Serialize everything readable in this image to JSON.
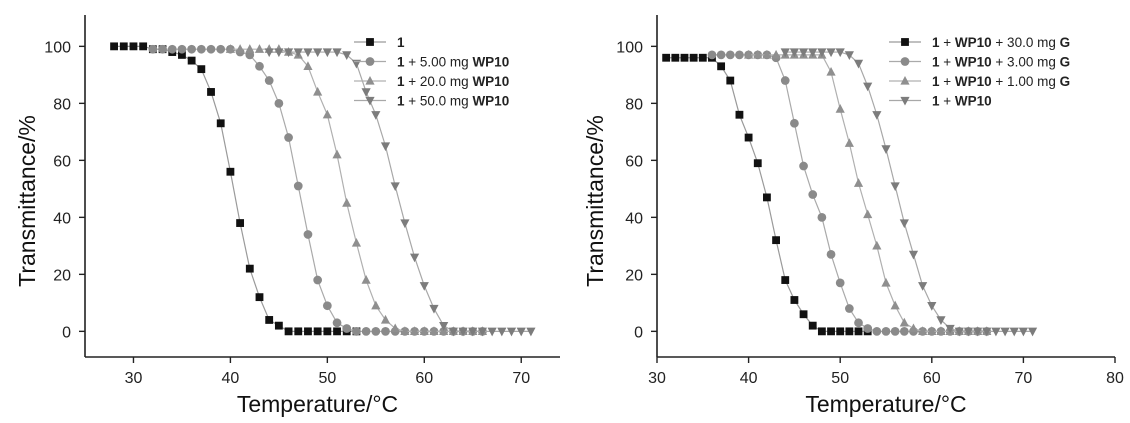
{
  "chart_data": [
    {
      "type": "scatter",
      "xlabel": "Temperature/°C",
      "ylabel": "Transmittance/%",
      "xlim": [
        25,
        74
      ],
      "ylim": [
        -9,
        111
      ],
      "xticks": [
        30,
        40,
        50,
        60,
        70
      ],
      "yticks": [
        0,
        20,
        40,
        60,
        80,
        100
      ],
      "legend_position": "top-right",
      "series": [
        {
          "name": "1",
          "legend": [
            {
              "t": "1",
              "b": true
            }
          ],
          "marker": "square",
          "color": "#111111",
          "line_color": "#9a9a9a",
          "x": [
            28,
            29,
            30,
            31,
            32,
            33,
            34,
            35,
            36,
            37,
            38,
            39,
            40,
            41,
            42,
            43,
            44,
            45,
            46,
            47,
            48,
            49,
            50,
            51,
            52,
            53
          ],
          "y": [
            100,
            100,
            100,
            100,
            99,
            99,
            98,
            97,
            95,
            92,
            84,
            73,
            56,
            38,
            22,
            12,
            4,
            2,
            0,
            0,
            0,
            0,
            0,
            0,
            0,
            0
          ]
        },
        {
          "name": "1 + 5.00 mg WP10",
          "legend": [
            {
              "t": "1",
              "b": true
            },
            {
              "t": " + 5.00 mg ",
              "b": false
            },
            {
              "t": "WP10",
              "b": true
            }
          ],
          "marker": "circle",
          "color": "#8a8a8a",
          "line_color": "#aaaaaa",
          "x": [
            32,
            33,
            34,
            35,
            36,
            37,
            38,
            39,
            40,
            41,
            42,
            43,
            44,
            45,
            46,
            47,
            48,
            49,
            50,
            51,
            52,
            53,
            54,
            55,
            56,
            57,
            58,
            59,
            60,
            61,
            62,
            63,
            64,
            65,
            66
          ],
          "y": [
            99,
            99,
            99,
            99,
            99,
            99,
            99,
            99,
            99,
            98,
            97,
            93,
            88,
            80,
            68,
            51,
            34,
            18,
            9,
            3,
            1,
            0,
            0,
            0,
            0,
            0,
            0,
            0,
            0,
            0,
            0,
            0,
            0,
            0,
            0
          ]
        },
        {
          "name": "1 + 20.0 mg WP10",
          "legend": [
            {
              "t": "1",
              "b": true
            },
            {
              "t": " + 20.0 mg ",
              "b": false
            },
            {
              "t": "WP10",
              "b": true
            }
          ],
          "marker": "triangle-up",
          "color": "#8f8f8f",
          "line_color": "#b0b0b0",
          "x": [
            40,
            41,
            42,
            43,
            44,
            45,
            46,
            47,
            48,
            49,
            50,
            51,
            52,
            53,
            54,
            55,
            56,
            57,
            58,
            59,
            60,
            61,
            62,
            63,
            64,
            65,
            66
          ],
          "y": [
            99,
            99,
            99,
            99,
            99,
            99,
            98,
            97,
            93,
            84,
            76,
            62,
            45,
            31,
            18,
            9,
            4,
            1,
            0,
            0,
            0,
            0,
            0,
            0,
            0,
            0,
            0
          ]
        },
        {
          "name": "1 + 50.0 mg WP10",
          "legend": [
            {
              "t": "1",
              "b": true
            },
            {
              "t": " + 50.0 mg ",
              "b": false
            },
            {
              "t": "WP10",
              "b": true
            }
          ],
          "marker": "triangle-down",
          "color": "#7c7c7c",
          "line_color": "#a8a8a8",
          "x": [
            44,
            45,
            46,
            47,
            48,
            49,
            50,
            51,
            52,
            53,
            54,
            55,
            56,
            57,
            58,
            59,
            60,
            61,
            62,
            63,
            64,
            65,
            66,
            67,
            68,
            69,
            70,
            71
          ],
          "y": [
            98,
            98,
            98,
            98,
            98,
            98,
            98,
            98,
            97,
            94,
            84,
            76,
            65,
            51,
            38,
            26,
            16,
            8,
            2,
            0,
            0,
            0,
            0,
            0,
            0,
            0,
            0,
            0
          ]
        }
      ]
    },
    {
      "type": "scatter",
      "xlabel": "Temperature/°C",
      "ylabel": "Transmittance/%",
      "xlim": [
        30,
        80
      ],
      "ylim": [
        -9,
        111
      ],
      "xticks": [
        30,
        40,
        50,
        60,
        70,
        80
      ],
      "yticks": [
        0,
        20,
        40,
        60,
        80,
        100
      ],
      "legend_position": "top-right",
      "series": [
        {
          "name": "1 + WP10 + 30.0 mg G",
          "legend": [
            {
              "t": "1",
              "b": true
            },
            {
              "t": " + ",
              "b": false
            },
            {
              "t": "WP10",
              "b": true
            },
            {
              "t": " + 30.0 mg ",
              "b": false
            },
            {
              "t": "G",
              "b": true
            }
          ],
          "marker": "square",
          "color": "#111111",
          "line_color": "#9a9a9a",
          "x": [
            31,
            32,
            33,
            34,
            35,
            36,
            37,
            38,
            39,
            40,
            41,
            42,
            43,
            44,
            45,
            46,
            47,
            48,
            49,
            50,
            51,
            52,
            53
          ],
          "y": [
            96,
            96,
            96,
            96,
            96,
            96,
            93,
            88,
            76,
            68,
            59,
            47,
            32,
            18,
            11,
            6,
            2,
            0,
            0,
            0,
            0,
            0,
            0
          ]
        },
        {
          "name": "1 + WP10 + 3.00 mg G",
          "legend": [
            {
              "t": "1",
              "b": true
            },
            {
              "t": " + ",
              "b": false
            },
            {
              "t": "WP10",
              "b": true
            },
            {
              "t": " + 3.00 mg ",
              "b": false
            },
            {
              "t": "G",
              "b": true
            }
          ],
          "marker": "circle",
          "color": "#8a8a8a",
          "line_color": "#aaaaaa",
          "x": [
            36,
            37,
            38,
            39,
            40,
            41,
            42,
            43,
            44,
            45,
            46,
            47,
            48,
            49,
            50,
            51,
            52,
            53,
            54,
            55,
            56,
            57,
            58,
            59,
            60,
            61,
            62,
            63,
            64,
            65,
            66
          ],
          "y": [
            97,
            97,
            97,
            97,
            97,
            97,
            97,
            96,
            88,
            73,
            58,
            48,
            40,
            27,
            17,
            8,
            3,
            1,
            0,
            0,
            0,
            0,
            0,
            0,
            0,
            0,
            0,
            0,
            0,
            0,
            0
          ]
        },
        {
          "name": "1 + WP10 + 1.00 mg G",
          "legend": [
            {
              "t": "1",
              "b": true
            },
            {
              "t": " + ",
              "b": false
            },
            {
              "t": "WP10",
              "b": true
            },
            {
              "t": " + 1.00 mg ",
              "b": false
            },
            {
              "t": "G",
              "b": true
            }
          ],
          "marker": "triangle-up",
          "color": "#8f8f8f",
          "line_color": "#b0b0b0",
          "x": [
            40,
            41,
            42,
            43,
            44,
            45,
            46,
            47,
            48,
            49,
            50,
            51,
            52,
            53,
            54,
            55,
            56,
            57,
            58,
            59,
            60,
            61,
            62,
            63,
            64,
            65,
            66
          ],
          "y": [
            97,
            97,
            97,
            97,
            97,
            97,
            97,
            97,
            97,
            91,
            78,
            66,
            52,
            41,
            30,
            17,
            9,
            3,
            1,
            0,
            0,
            0,
            0,
            0,
            0,
            0,
            0
          ]
        },
        {
          "name": "1 + WP10",
          "legend": [
            {
              "t": "1",
              "b": true
            },
            {
              "t": " + ",
              "b": false
            },
            {
              "t": "WP10",
              "b": true
            }
          ],
          "marker": "triangle-down",
          "color": "#7c7c7c",
          "line_color": "#a8a8a8",
          "x": [
            44,
            45,
            46,
            47,
            48,
            49,
            50,
            51,
            52,
            53,
            54,
            55,
            56,
            57,
            58,
            59,
            60,
            61,
            62,
            63,
            64,
            65,
            66,
            67,
            68,
            69,
            70,
            71
          ],
          "y": [
            98,
            98,
            98,
            98,
            98,
            98,
            98,
            97,
            94,
            86,
            76,
            64,
            51,
            38,
            27,
            16,
            9,
            4,
            1,
            0,
            0,
            0,
            0,
            0,
            0,
            0,
            0,
            0
          ]
        }
      ]
    }
  ]
}
